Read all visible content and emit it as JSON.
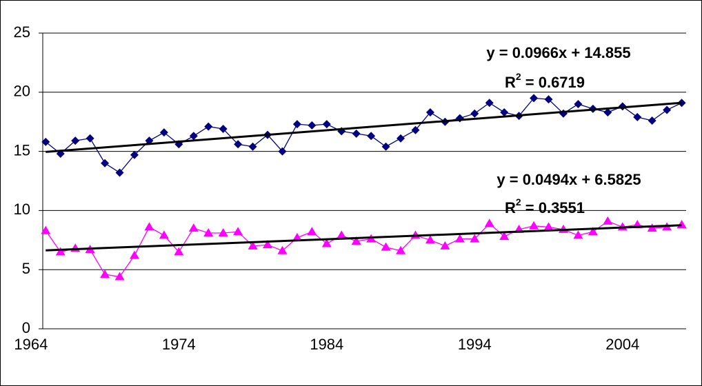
{
  "chart_data": {
    "type": "line",
    "x": [
      1965,
      1966,
      1967,
      1968,
      1969,
      1970,
      1971,
      1972,
      1973,
      1974,
      1975,
      1976,
      1977,
      1978,
      1979,
      1980,
      1981,
      1982,
      1983,
      1984,
      1985,
      1986,
      1987,
      1988,
      1989,
      1990,
      1991,
      1992,
      1993,
      1994,
      1995,
      1996,
      1997,
      1998,
      1999,
      2000,
      2001,
      2002,
      2003,
      2004,
      2005,
      2006,
      2007,
      2008
    ],
    "xlim": [
      1964.8,
      2008.3
    ],
    "xticks": [
      1964,
      1974,
      1984,
      1994,
      2004
    ],
    "ylim": [
      0,
      25
    ],
    "yticks": [
      0,
      5,
      10,
      15,
      20,
      25
    ],
    "grid": true,
    "series": [
      {
        "color": "#000080",
        "marker": "diamond",
        "values": [
          15.8,
          14.8,
          15.9,
          16.1,
          14.0,
          13.2,
          14.7,
          15.9,
          16.6,
          15.6,
          16.3,
          17.1,
          16.9,
          15.6,
          15.4,
          16.4,
          15.0,
          17.3,
          17.2,
          17.3,
          16.7,
          16.5,
          16.3,
          15.4,
          16.1,
          16.8,
          18.3,
          17.5,
          17.8,
          18.2,
          19.1,
          18.3,
          18.0,
          19.5,
          19.4,
          18.2,
          19.0,
          18.6,
          18.3,
          18.8,
          17.9,
          17.6,
          18.5,
          19.1
        ],
        "trendline": {
          "equation": "y = 0.0966x + 14.855",
          "slope": 0.0966,
          "intercept": 14.855,
          "r2": {
            "symbol": "R",
            "power": "2",
            "text": " = 0.6719"
          }
        }
      },
      {
        "color": "#ff00ff",
        "marker": "triangle",
        "values": [
          8.3,
          6.5,
          6.8,
          6.7,
          4.6,
          4.4,
          6.2,
          8.6,
          7.9,
          6.5,
          8.5,
          8.1,
          8.1,
          8.2,
          7.0,
          7.1,
          6.6,
          7.7,
          8.2,
          7.2,
          7.9,
          7.4,
          7.6,
          6.9,
          6.6,
          7.9,
          7.5,
          7.0,
          7.6,
          7.6,
          8.9,
          7.8,
          8.4,
          8.7,
          8.6,
          8.4,
          7.9,
          8.2,
          9.1,
          8.6,
          8.8,
          8.5,
          8.6,
          8.8
        ],
        "trendline": {
          "equation": "y = 0.0494x + 6.5825",
          "slope": 0.0494,
          "intercept": 6.5825,
          "r2": {
            "symbol": "R",
            "power": "2",
            "text": " = 0.3551"
          }
        }
      }
    ]
  }
}
